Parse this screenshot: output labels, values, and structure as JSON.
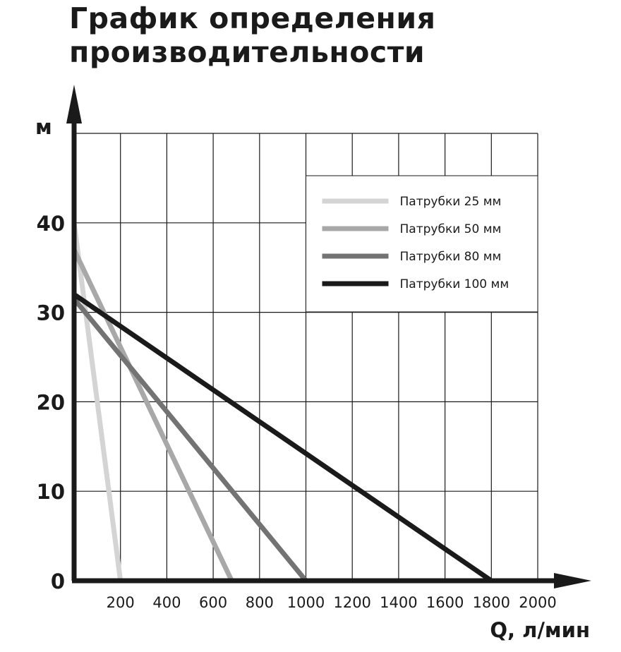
{
  "title_line1": "График определения",
  "title_line2": "производительности",
  "chart_data": {
    "type": "line",
    "xlabel": "Q, л/мин",
    "ylabel": "м",
    "xlim": [
      0,
      2000
    ],
    "ylim": [
      0,
      50
    ],
    "x_ticks": [
      200,
      400,
      600,
      800,
      1000,
      1200,
      1400,
      1600,
      1800,
      2000
    ],
    "x_tick_labels": [
      "200",
      "400",
      "600",
      "800",
      "1000",
      "1200",
      "1400",
      "1600",
      "1800",
      "2000"
    ],
    "y_ticks": [
      0,
      10,
      20,
      30,
      40
    ],
    "y_tick_labels": [
      "0",
      "10",
      "20",
      "30",
      "40"
    ],
    "grid": true,
    "legend_position": "top-right",
    "series": [
      {
        "name": "Патрубки 25 мм",
        "color": "#d4d4d4",
        "x": [
          0,
          200
        ],
        "y": [
          40,
          0
        ]
      },
      {
        "name": "Патрубки 50 мм",
        "color": "#a8a8a8",
        "x": [
          0,
          680
        ],
        "y": [
          37,
          0
        ]
      },
      {
        "name": "Патрубки 80 мм",
        "color": "#737373",
        "x": [
          0,
          1000
        ],
        "y": [
          31.5,
          0
        ]
      },
      {
        "name": "Патрубки 100 мм",
        "color": "#1a1a1a",
        "x": [
          0,
          1800
        ],
        "y": [
          32,
          0
        ]
      }
    ]
  }
}
